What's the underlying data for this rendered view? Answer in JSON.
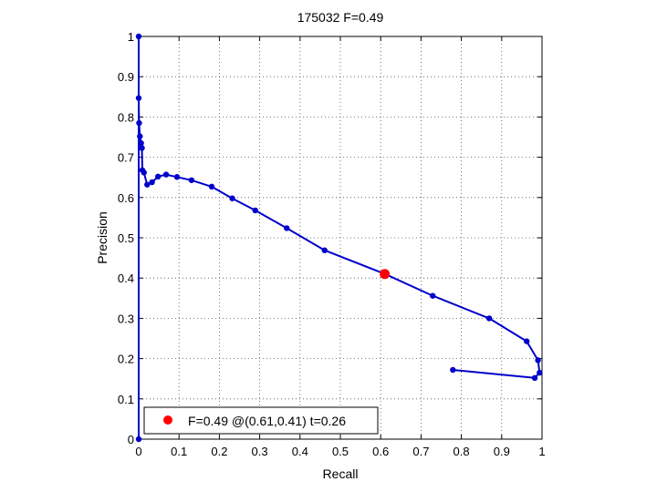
{
  "chart_data": {
    "type": "line",
    "title": "175032 F=0.49",
    "xlabel": "Recall",
    "ylabel": "Precision",
    "xlim": [
      0,
      1
    ],
    "ylim": [
      0,
      1
    ],
    "grid": true,
    "xticks": [
      0,
      0.1,
      0.2,
      0.3,
      0.4,
      0.5,
      0.6,
      0.7,
      0.8,
      0.9,
      1
    ],
    "yticks": [
      0,
      0.1,
      0.2,
      0.3,
      0.4,
      0.5,
      0.6,
      0.7,
      0.8,
      0.9,
      1
    ],
    "xtick_labels": [
      "0",
      "0.1",
      "0.2",
      "0.3",
      "0.4",
      "0.5",
      "0.6",
      "0.7",
      "0.8",
      "0.9",
      "1"
    ],
    "ytick_labels": [
      "0",
      "0.1",
      "0.2",
      "0.3",
      "0.4",
      "0.5",
      "0.6",
      "0.7",
      "0.8",
      "0.9",
      "1"
    ],
    "series": [
      {
        "color": "#0000cc",
        "points": [
          [
            0,
            0
          ],
          [
            0,
            1
          ],
          [
            0,
            0.847
          ],
          [
            0.001,
            0.785
          ],
          [
            0.003,
            0.752
          ],
          [
            0.006,
            0.735
          ],
          [
            0.008,
            0.723
          ],
          [
            0.009,
            0.668
          ],
          [
            0.013,
            0.662
          ],
          [
            0.021,
            0.632
          ],
          [
            0.033,
            0.638
          ],
          [
            0.048,
            0.652
          ],
          [
            0.068,
            0.657
          ],
          [
            0.095,
            0.651
          ],
          [
            0.131,
            0.643
          ],
          [
            0.181,
            0.627
          ],
          [
            0.232,
            0.598
          ],
          [
            0.289,
            0.568
          ],
          [
            0.367,
            0.524
          ],
          [
            0.461,
            0.469
          ],
          [
            0.611,
            0.41
          ],
          [
            0.729,
            0.356
          ],
          [
            0.869,
            0.3
          ],
          [
            0.962,
            0.243
          ],
          [
            0.99,
            0.196
          ],
          [
            0.994,
            0.165
          ],
          [
            0.982,
            0.152
          ],
          [
            0.779,
            0.172
          ]
        ]
      }
    ],
    "highlight": {
      "x": 0.61,
      "y": 0.41,
      "color": "#ff0000"
    },
    "legend": {
      "position": "bottom-left",
      "entries": [
        {
          "label": "F=0.49 @(0.61,0.41) t=0.26",
          "color": "#ff0000",
          "marker": "dot"
        }
      ]
    }
  }
}
